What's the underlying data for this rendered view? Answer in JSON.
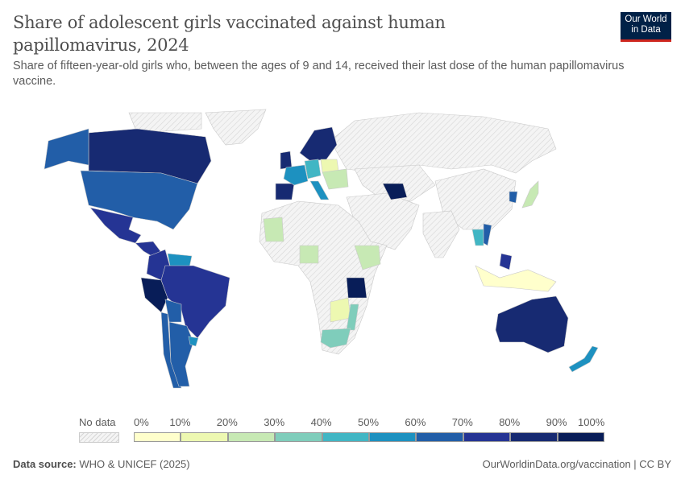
{
  "header": {
    "title": "Share of adolescent girls vaccinated against human papillomavirus, 2024",
    "subtitle": "Share of fifteen-year-old girls who, between the ages of 9 and 14, received their last dose of the human papillomavirus vaccine.",
    "logo_text": "Our World in Data"
  },
  "legend": {
    "no_data_label": "No data",
    "ticks": [
      "0%",
      "10%",
      "20%",
      "30%",
      "40%",
      "50%",
      "60%",
      "70%",
      "80%",
      "90%",
      "100%"
    ],
    "bins": [
      {
        "range": [
          0,
          10
        ],
        "color": "#ffffcc"
      },
      {
        "range": [
          10,
          20
        ],
        "color": "#edf8b1"
      },
      {
        "range": [
          20,
          30
        ],
        "color": "#c7e9b4"
      },
      {
        "range": [
          30,
          40
        ],
        "color": "#7fcdbb"
      },
      {
        "range": [
          40,
          50
        ],
        "color": "#41b6c4"
      },
      {
        "range": [
          50,
          60
        ],
        "color": "#1d91c0"
      },
      {
        "range": [
          60,
          70
        ],
        "color": "#225ea8"
      },
      {
        "range": [
          70,
          80
        ],
        "color": "#253494"
      },
      {
        "range": [
          80,
          90
        ],
        "color": "#172a72"
      },
      {
        "range": [
          90,
          100
        ],
        "color": "#081d58"
      }
    ],
    "no_data_color": "#e8e8e8"
  },
  "map_values": {
    "canada": 85,
    "usa": 65,
    "mexico": 75,
    "central-america": 72,
    "colombia": 70,
    "venezuela": 50,
    "brazil": 75,
    "peru": 92,
    "bolivia": 68,
    "chile": 65,
    "argentina": 65,
    "uruguay": 50,
    "scandinavia": 88,
    "uk": 80,
    "spain": 88,
    "france": 55,
    "germany": 45,
    "italy": 50,
    "poland": 15,
    "eastern-europe": 25,
    "uzbekistan": 95,
    "turkey": null,
    "iran": null,
    "mauritania": 25,
    "nigeria": 25,
    "ethiopia": 20,
    "tanzania": 95,
    "zambia": 15,
    "mozambique": 30,
    "south-africa": 35,
    "japan": 22,
    "south-korea": 65,
    "thailand": 45,
    "vietnam": 60,
    "philippines": 70,
    "indonesia": 8,
    "australia": 85,
    "new-zealand": 55,
    "russia": null,
    "china": null,
    "india": null
  },
  "footer": {
    "source_label": "Data source:",
    "source_value": "WHO & UNICEF (2025)",
    "url": "OurWorldinData.org/vaccination | CC BY"
  }
}
